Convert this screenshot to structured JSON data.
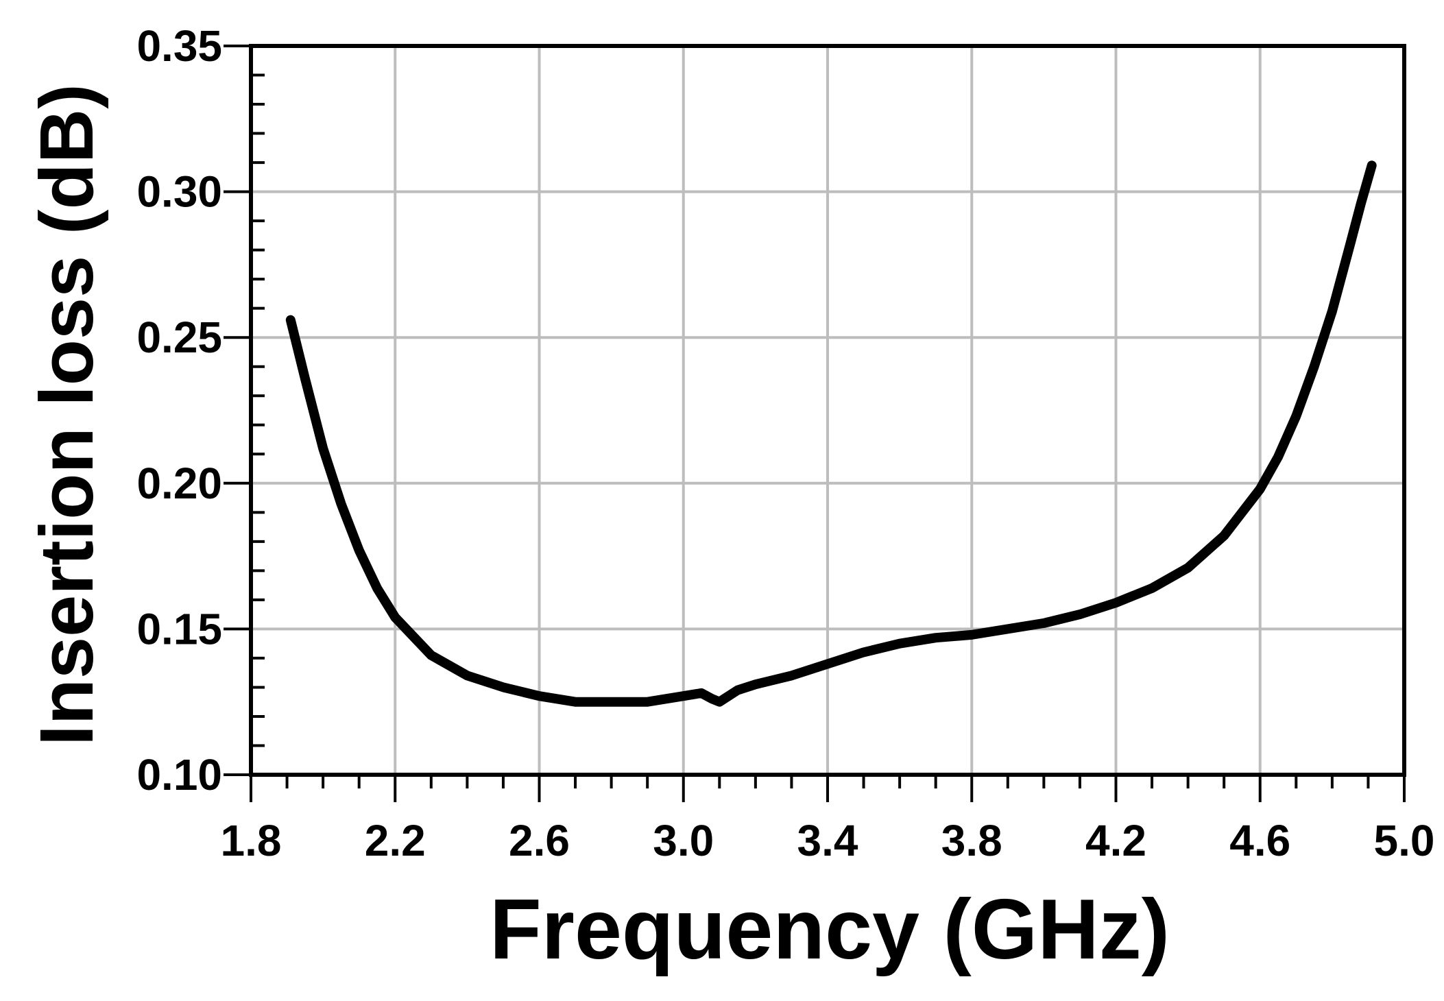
{
  "chart_data": {
    "type": "line",
    "xlabel": "Frequency (GHz)",
    "ylabel": "Insertion loss (dB)",
    "xlim": [
      1.8,
      5.0
    ],
    "ylim": [
      0.1,
      0.35
    ],
    "x_ticks": [
      "1.8",
      "2.2",
      "2.6",
      "3.0",
      "3.4",
      "3.8",
      "4.2",
      "4.6",
      "5.0"
    ],
    "y_ticks": [
      "0.10",
      "0.15",
      "0.20",
      "0.25",
      "0.30",
      "0.35"
    ],
    "x_minor_step": 0.1,
    "y_minor_step": 0.01,
    "grid": true,
    "colors": {
      "line": "#000000",
      "grid": "#bdbdbd",
      "frame": "#000000",
      "background": "#ffffff"
    },
    "series": [
      {
        "x": [
          1.91,
          1.95,
          2.0,
          2.05,
          2.1,
          2.15,
          2.2,
          2.3,
          2.4,
          2.5,
          2.6,
          2.7,
          2.8,
          2.9,
          3.0,
          3.05,
          3.08,
          3.1,
          3.15,
          3.2,
          3.3,
          3.4,
          3.5,
          3.6,
          3.7,
          3.8,
          3.9,
          4.0,
          4.1,
          4.2,
          4.3,
          4.4,
          4.5,
          4.6,
          4.65,
          4.7,
          4.75,
          4.8,
          4.85,
          4.88,
          4.91
        ],
        "y": [
          0.256,
          0.236,
          0.212,
          0.193,
          0.177,
          0.164,
          0.154,
          0.141,
          0.134,
          0.13,
          0.127,
          0.125,
          0.125,
          0.125,
          0.127,
          0.128,
          0.126,
          0.125,
          0.129,
          0.131,
          0.134,
          0.138,
          0.142,
          0.145,
          0.147,
          0.148,
          0.15,
          0.152,
          0.155,
          0.159,
          0.164,
          0.171,
          0.182,
          0.198,
          0.209,
          0.223,
          0.24,
          0.259,
          0.282,
          0.296,
          0.309
        ]
      }
    ]
  }
}
